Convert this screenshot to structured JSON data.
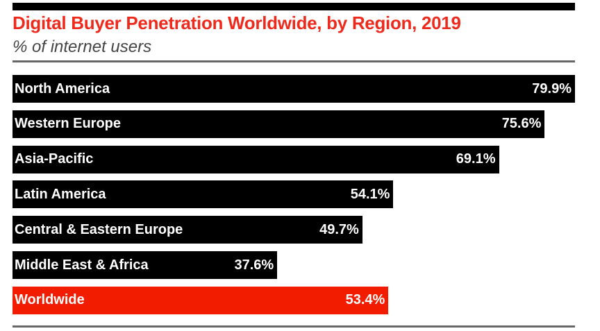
{
  "chart_data": {
    "type": "bar",
    "orientation": "horizontal",
    "title": "Digital Buyer Penetration Worldwide, by Region, 2019",
    "subtitle": "% of internet users",
    "categories": [
      "North America",
      "Western Europe",
      "Asia-Pacific",
      "Latin America",
      "Central & Eastern Europe",
      "Middle East & Africa",
      "Worldwide"
    ],
    "values": [
      79.9,
      75.6,
      69.1,
      54.1,
      49.7,
      37.6,
      53.4
    ],
    "labels": [
      "79.9%",
      "75.6%",
      "69.1%",
      "54.1%",
      "49.7%",
      "37.6%",
      "53.4%"
    ],
    "colors": [
      "#000000",
      "#000000",
      "#000000",
      "#000000",
      "#000000",
      "#000000",
      "#f21d00"
    ],
    "xlim": [
      0,
      79.9
    ],
    "grid": false,
    "legend": "none"
  }
}
